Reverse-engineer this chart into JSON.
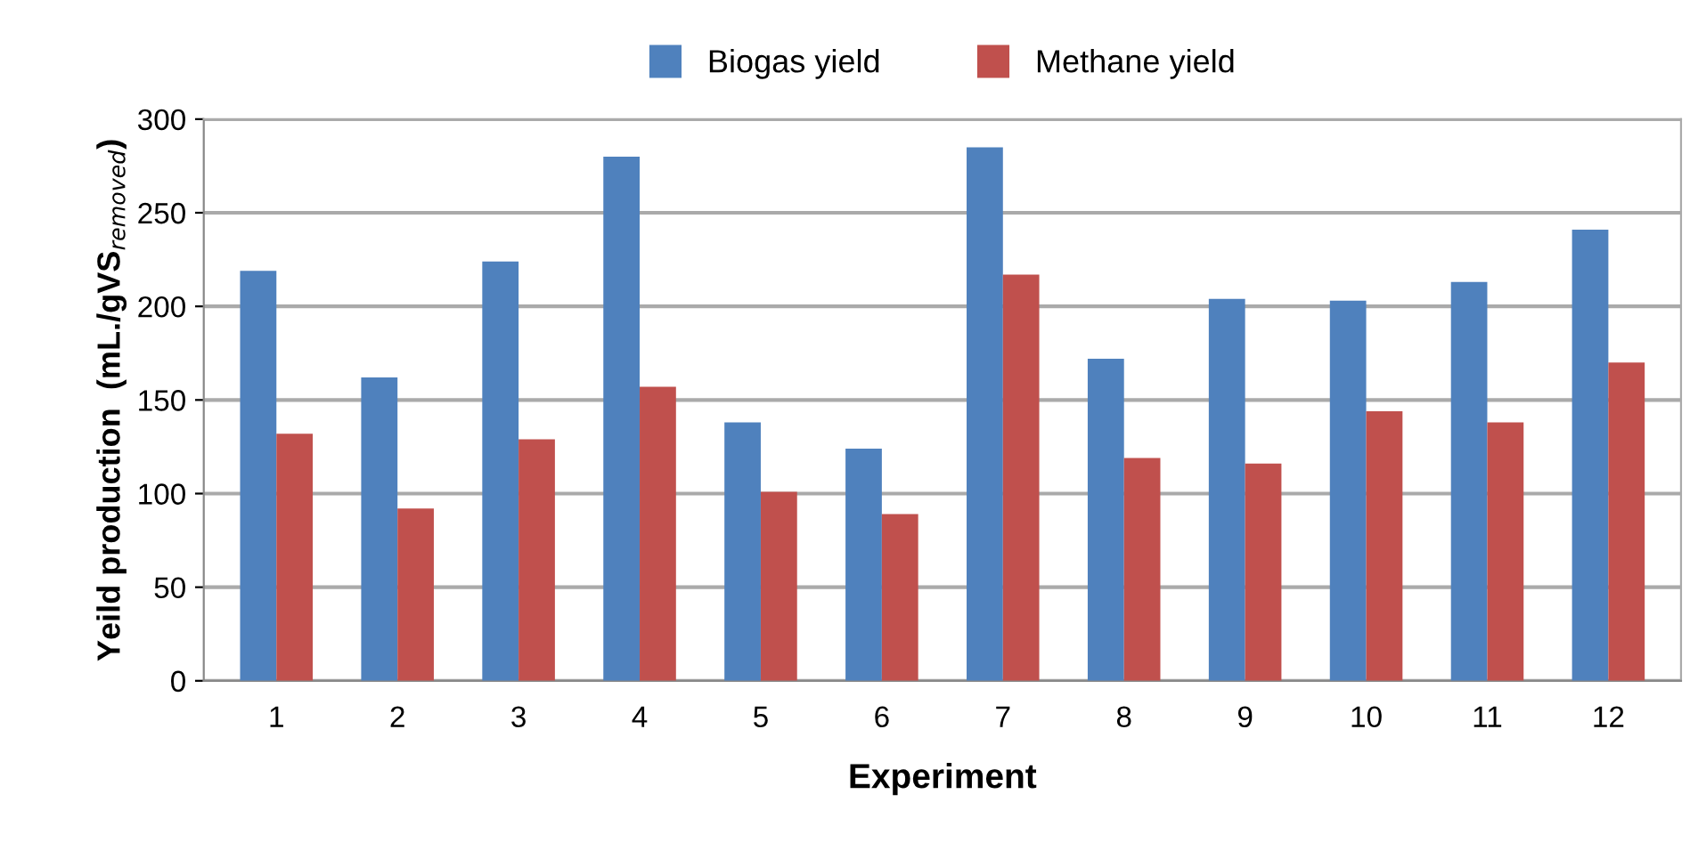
{
  "chart_data": {
    "type": "bar",
    "xlabel": "Experiment",
    "ylabel": "Yeild production  (mL./gVS$_{removed}$)",
    "categories": [
      "1",
      "2",
      "3",
      "4",
      "5",
      "6",
      "7",
      "8",
      "9",
      "10",
      "11",
      "12"
    ],
    "series": [
      {
        "name": "Biogas yield",
        "color": "#4f81bd",
        "values": [
          219,
          162,
          224,
          280,
          138,
          124,
          285,
          172,
          204,
          203,
          213,
          241
        ]
      },
      {
        "name": "Methane yield",
        "color": "#c0504d",
        "values": [
          132,
          92,
          129,
          157,
          101,
          89,
          217,
          119,
          116,
          144,
          138,
          170
        ]
      }
    ],
    "ylim": [
      0,
      300
    ],
    "yticks": [
      0,
      50,
      100,
      150,
      200,
      250,
      300
    ],
    "grid": "y",
    "legend": "top"
  }
}
